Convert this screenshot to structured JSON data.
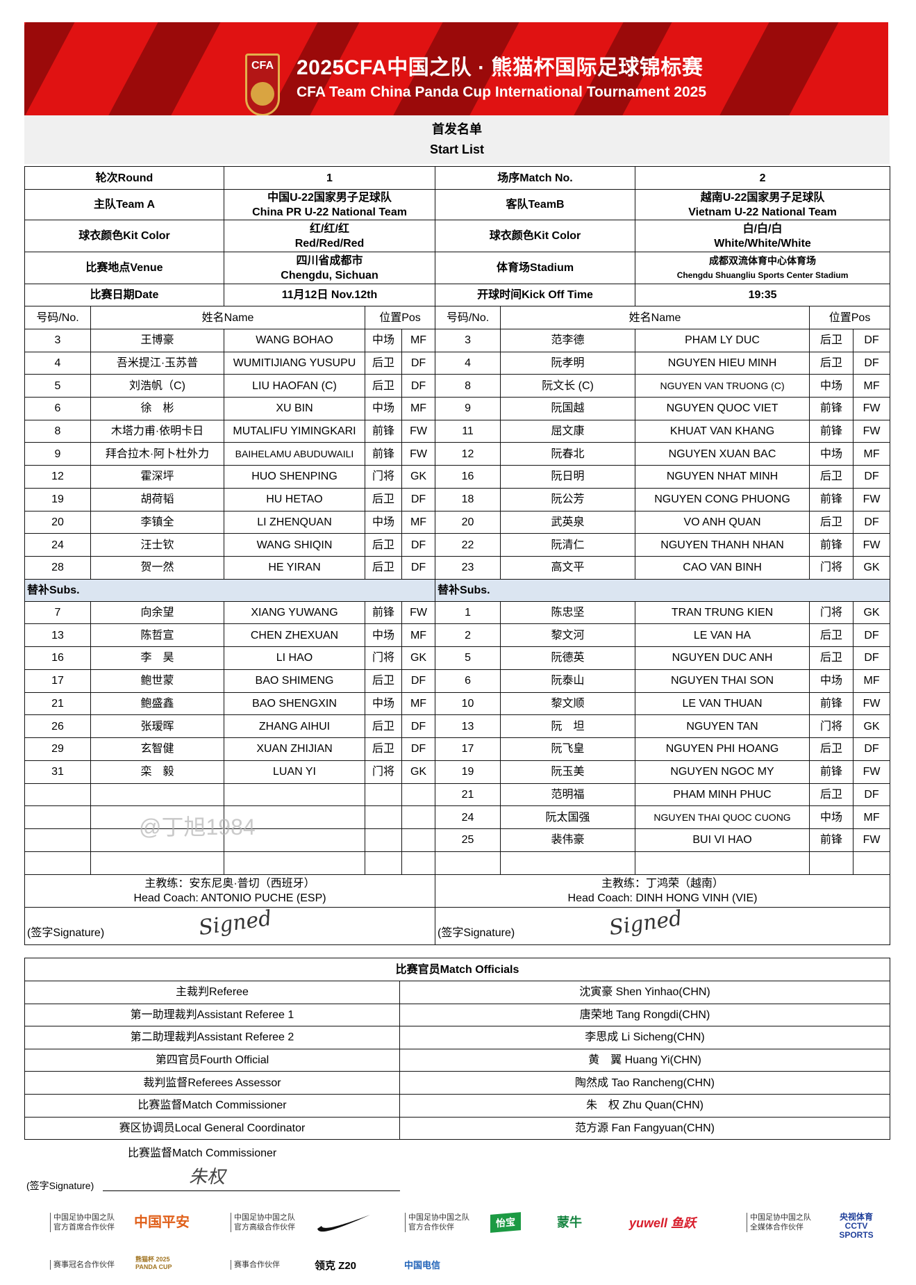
{
  "banner": {
    "title_cn": "2025CFA中国之队 · 熊猫杯国际足球锦标赛",
    "title_en": "CFA Team China Panda Cup International Tournament 2025",
    "logo_text": "CFA",
    "colors": {
      "red": "#e01212",
      "dark": "#9b0a0a"
    }
  },
  "doc": {
    "title_cn": "首发名单",
    "title_en": "Start List"
  },
  "info": {
    "round_label": "轮次Round",
    "round": "1",
    "match_label": "场序Match No.",
    "match": "2",
    "team_a_label": "主队Team A",
    "team_a_cn": "中国U-22国家男子足球队",
    "team_a_en": "China PR U-22 National Team",
    "team_b_label": "客队TeamB",
    "team_b_cn": "越南U-22国家男子足球队",
    "team_b_en": "Vietnam U-22 National Team",
    "kit_label": "球衣颜色Kit Color",
    "kit_a_cn": "红/红/红",
    "kit_a_en": "Red/Red/Red",
    "kit_b_cn": "白/白/白",
    "kit_b_en": "White/White/White",
    "venue_label": "比赛地点Venue",
    "venue_cn": "四川省成都市",
    "venue_en": "Chengdu, Sichuan",
    "stadium_label": "体育场Stadium",
    "stadium_cn": "成都双流体育中心体育场",
    "stadium_en": "Chengdu Shuangliu Sports Center Stadium",
    "date_label": "比赛日期Date",
    "date": "11月12日 Nov.12th",
    "kickoff_label": "开球时间Kick Off Time",
    "kickoff": "19:35"
  },
  "columns": {
    "no": "号码/No.",
    "name": "姓名Name",
    "pos": "位置Pos"
  },
  "subs_label": "替补Subs.",
  "team_a": {
    "starters": [
      [
        "3",
        "王博豪",
        "WANG BOHAO",
        "中场",
        "MF"
      ],
      [
        "4",
        "吾米提江·玉苏普",
        "WUMITIJIANG YUSUPU",
        "后卫",
        "DF"
      ],
      [
        "5",
        "刘浩帆（C)",
        "LIU HAOFAN (C)",
        "后卫",
        "DF"
      ],
      [
        "6",
        "徐　彬",
        "XU BIN",
        "中场",
        "MF"
      ],
      [
        "8",
        "木塔力甫·依明卡日",
        "MUTALIFU YIMINGKARI",
        "前锋",
        "FW"
      ],
      [
        "9",
        "拜合拉木·阿卜杜外力",
        "BAIHELAMU ABUDUWAILI",
        "前锋",
        "FW"
      ],
      [
        "12",
        "霍深坪",
        "HUO SHENPING",
        "门将",
        "GK"
      ],
      [
        "19",
        "胡荷韬",
        "HU HETAO",
        "后卫",
        "DF"
      ],
      [
        "20",
        "李镇全",
        "LI ZHENQUAN",
        "中场",
        "MF"
      ],
      [
        "24",
        "汪士钦",
        "WANG SHIQIN",
        "后卫",
        "DF"
      ],
      [
        "28",
        "贺一然",
        "HE YIRAN",
        "后卫",
        "DF"
      ]
    ],
    "subs": [
      [
        "7",
        "向余望",
        "XIANG YUWANG",
        "前锋",
        "FW"
      ],
      [
        "13",
        "陈哲宣",
        "CHEN ZHEXUAN",
        "中场",
        "MF"
      ],
      [
        "16",
        "李　昊",
        "LI HAO",
        "门将",
        "GK"
      ],
      [
        "17",
        "鲍世蒙",
        "BAO SHIMENG",
        "后卫",
        "DF"
      ],
      [
        "21",
        "鲍盛鑫",
        "BAO SHENGXIN",
        "中场",
        "MF"
      ],
      [
        "26",
        "张瑷晖",
        "ZHANG AIHUI",
        "后卫",
        "DF"
      ],
      [
        "29",
        "玄智健",
        "XUAN ZHIJIAN",
        "后卫",
        "DF"
      ],
      [
        "31",
        "栾　毅",
        "LUAN YI",
        "门将",
        "GK"
      ]
    ],
    "coach_cn": "主教练：安东尼奥·普切（西班牙）",
    "coach_en": "Head Coach: ANTONIO PUCHE (ESP)"
  },
  "team_b": {
    "starters": [
      [
        "3",
        "范李德",
        "PHAM LY DUC",
        "后卫",
        "DF"
      ],
      [
        "4",
        "阮孝明",
        "NGUYEN HIEU MINH",
        "后卫",
        "DF"
      ],
      [
        "8",
        "阮文长 (C)",
        "NGUYEN VAN TRUONG (C)",
        "中场",
        "MF"
      ],
      [
        "9",
        "阮国越",
        "NGUYEN QUOC VIET",
        "前锋",
        "FW"
      ],
      [
        "11",
        "屈文康",
        "KHUAT VAN KHANG",
        "前锋",
        "FW"
      ],
      [
        "12",
        "阮春北",
        "NGUYEN XUAN BAC",
        "中场",
        "MF"
      ],
      [
        "16",
        "阮日明",
        "NGUYEN NHAT MINH",
        "后卫",
        "DF"
      ],
      [
        "18",
        "阮公芳",
        "NGUYEN CONG PHUONG",
        "前锋",
        "FW"
      ],
      [
        "20",
        "武英泉",
        "VO ANH QUAN",
        "后卫",
        "DF"
      ],
      [
        "22",
        "阮清仁",
        "NGUYEN THANH NHAN",
        "前锋",
        "FW"
      ],
      [
        "23",
        "高文平",
        "CAO VAN BINH",
        "门将",
        "GK"
      ]
    ],
    "subs": [
      [
        "1",
        "陈忠坚",
        "TRAN TRUNG KIEN",
        "门将",
        "GK"
      ],
      [
        "2",
        "黎文河",
        "LE VAN HA",
        "后卫",
        "DF"
      ],
      [
        "5",
        "阮德英",
        "NGUYEN DUC ANH",
        "后卫",
        "DF"
      ],
      [
        "6",
        "阮泰山",
        "NGUYEN THAI SON",
        "中场",
        "MF"
      ],
      [
        "10",
        "黎文顺",
        "LE VAN THUAN",
        "前锋",
        "FW"
      ],
      [
        "13",
        "阮　坦",
        "NGUYEN TAN",
        "门将",
        "GK"
      ],
      [
        "17",
        "阮飞皇",
        "NGUYEN PHI HOANG",
        "后卫",
        "DF"
      ],
      [
        "19",
        "阮玉美",
        "NGUYEN NGOC MY",
        "前锋",
        "FW"
      ],
      [
        "21",
        "范明福",
        "PHAM MINH PHUC",
        "后卫",
        "DF"
      ],
      [
        "24",
        "阮太国强",
        "NGUYEN THAI QUOC CUONG",
        "中场",
        "MF"
      ],
      [
        "25",
        "裴伟豪",
        "BUI VI HAO",
        "前锋",
        "FW"
      ]
    ],
    "coach_cn": "主教练：丁鸿荣（越南）",
    "coach_en": "Head Coach: DINH HONG VINH (VIE)"
  },
  "signature_label": "(签字Signature)",
  "signature_mark": "Signed",
  "officials": {
    "title": "比赛官员Match Officials",
    "rows": [
      [
        "主裁判Referee",
        "沈寅豪 Shen Yinhao(CHN)"
      ],
      [
        "第一助理裁判Assistant Referee 1",
        "唐荣地 Tang Rongdi(CHN)"
      ],
      [
        "第二助理裁判Assistant Referee 2",
        "李思成 Li Sicheng(CHN)"
      ],
      [
        "第四官员Fourth Official",
        "黄　翼 Huang Yi(CHN)"
      ],
      [
        "裁判监督Referees Assessor",
        "陶然成 Tao Rancheng(CHN)"
      ],
      [
        "比赛监督Match Commissioner",
        "朱　权 Zhu Quan(CHN)"
      ],
      [
        "赛区协调员Local General Coordinator",
        "范方源 Fan Fangyuan(CHN)"
      ]
    ]
  },
  "commissioner": {
    "label": "比赛监督Match Commissioner",
    "signature_label": "(签字Signature)",
    "signature_mark": "朱权"
  },
  "watermark": "@丁旭1984",
  "sponsors": {
    "row1": [
      {
        "label": "中国足协中国之队\n官方首席合作伙伴",
        "logos": [
          "中国平安"
        ]
      },
      {
        "label": "中国足协中国之队\n官方高级合作伙伴",
        "logos": [
          "Nike swoosh"
        ]
      },
      {
        "label": "中国足协中国之队\n官方合作伙伴",
        "logos": [
          "怡宝",
          "蒙牛",
          "yuwell 鱼跃"
        ]
      },
      {
        "label": "中国足协中国之队\n全媒体合作伙伴",
        "logos": [
          "央视体育 CCTV SPORTS"
        ]
      }
    ],
    "row2": [
      {
        "label": "赛事冠名合作伙伴",
        "logos": [
          "熊猫杯 2025 PANDA CUP"
        ]
      },
      {
        "label": "赛事合作伙伴",
        "logos": [
          "领克 Z20",
          "中国电信"
        ]
      }
    ]
  }
}
